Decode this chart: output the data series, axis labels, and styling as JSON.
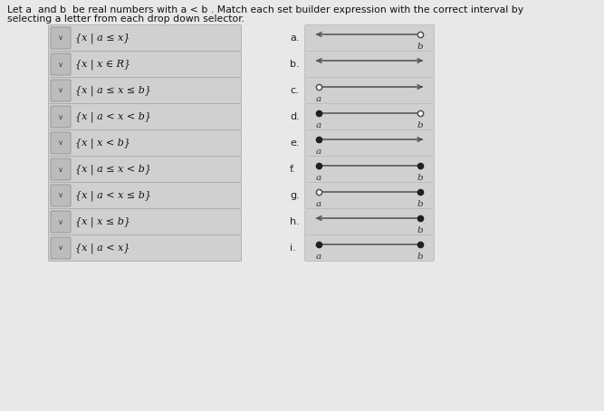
{
  "title_line1": "Let a  and b  be real numbers with a < b . Match each set builder expression with the correct interval by",
  "title_line2": "selecting a letter from each drop down selector.",
  "bg_color": "#e8e8e8",
  "box_bg": "#d0d0d0",
  "white_bg": "#e8e8e8",
  "left_expressions": [
    "{x | a ≤ x}",
    "{x | x ∈ R}",
    "{x | a ≤ x ≤ b}",
    "{x | a < x < b}",
    "{x | x < b}",
    "{x | a ≤ x < b}",
    "{x | a < x ≤ b}",
    "{x | x ≤ b}",
    "{x | a < x}"
  ],
  "right_labels": [
    "a.",
    "b.",
    "c.",
    "d.",
    "e.",
    "f.",
    "g.",
    "h.",
    "i."
  ],
  "intervals": [
    {
      "left_arrow": true,
      "right_arrow": false,
      "left_open": false,
      "right_open": true,
      "left_label": null,
      "right_label": "b"
    },
    {
      "left_arrow": true,
      "right_arrow": true,
      "left_open": false,
      "right_open": false,
      "left_label": null,
      "right_label": null
    },
    {
      "left_arrow": false,
      "right_arrow": true,
      "left_open": true,
      "right_open": false,
      "left_label": "a",
      "right_label": null
    },
    {
      "left_arrow": false,
      "right_arrow": false,
      "left_open": false,
      "right_open": true,
      "left_label": "a",
      "right_label": "b"
    },
    {
      "left_arrow": false,
      "right_arrow": true,
      "left_open": false,
      "right_open": false,
      "left_label": "a",
      "right_label": null
    },
    {
      "left_arrow": false,
      "right_arrow": false,
      "left_open": false,
      "right_open": false,
      "left_label": "a",
      "right_label": "b"
    },
    {
      "left_arrow": false,
      "right_arrow": false,
      "left_open": true,
      "right_open": false,
      "left_label": "a",
      "right_label": "b"
    },
    {
      "left_arrow": true,
      "right_arrow": false,
      "left_open": false,
      "right_open": false,
      "left_label": null,
      "right_label": "b"
    },
    {
      "left_arrow": false,
      "right_arrow": false,
      "left_open": false,
      "right_open": false,
      "left_label": "a",
      "right_label": "b"
    }
  ],
  "line_color": "#505050",
  "dot_color": "#202020",
  "label_color": "#333333",
  "font_size_title": 7.8,
  "font_size_expr": 8.0,
  "font_size_label": 8.0,
  "font_size_pt": 7.5
}
